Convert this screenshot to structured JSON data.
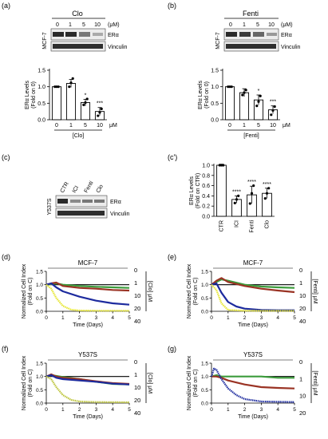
{
  "panels": {
    "a": {
      "tag": "(a)",
      "drug": "Clo",
      "unit": "(μM)",
      "doses": [
        "0",
        "1",
        "5",
        "10"
      ],
      "cell_line": "MCF-7",
      "blots": [
        "ERα",
        "Vinculin"
      ]
    },
    "b": {
      "tag": "(b)",
      "drug": "Fenti",
      "unit": "(μM)",
      "doses": [
        "0",
        "1",
        "5",
        "10"
      ],
      "cell_line": "MCF-7",
      "blots": [
        "ERα",
        "Vinculin"
      ]
    },
    "c": {
      "tag": "(c)",
      "lanes": [
        "CTR",
        "ICI",
        "Fenti",
        "Clo"
      ],
      "cell_line": "Y537S",
      "blots": [
        "ERα",
        "Vinculin"
      ]
    },
    "c2": {
      "tag": "(c')"
    },
    "d": {
      "tag": "(d)"
    },
    "e": {
      "tag": "(e)"
    },
    "f": {
      "tag": "(f)"
    },
    "g": {
      "tag": "(g)"
    }
  },
  "chart_data": [
    {
      "id": "a",
      "type": "bar",
      "categories": [
        "0",
        "1",
        "5",
        "10"
      ],
      "values": [
        1.0,
        1.1,
        0.52,
        0.25
      ],
      "errors": [
        0.02,
        0.12,
        0.1,
        0.12
      ],
      "points": [
        [
          1.0,
          1.0,
          1.0
        ],
        [
          1.0,
          1.12,
          1.25
        ],
        [
          0.45,
          0.52,
          0.63
        ],
        [
          0.12,
          0.22,
          0.33
        ]
      ],
      "significance": [
        "",
        "",
        "*",
        "***"
      ],
      "ylabel": "ERα Levels (Fold on 0)",
      "xlabel": "[Clo]",
      "xunit": "μM",
      "ylim": [
        0,
        1.5
      ],
      "yticks": [
        "0.0",
        "0.5",
        "1.0",
        "1.5"
      ]
    },
    {
      "id": "b",
      "type": "bar",
      "categories": [
        "0",
        "1",
        "5",
        "10"
      ],
      "values": [
        1.0,
        0.82,
        0.6,
        0.3
      ],
      "errors": [
        0.02,
        0.12,
        0.15,
        0.12
      ],
      "points": [
        [
          1.0,
          1.0,
          1.0
        ],
        [
          0.75,
          0.82,
          0.9
        ],
        [
          0.42,
          0.55,
          0.72
        ],
        [
          0.15,
          0.28,
          0.4
        ]
      ],
      "significance": [
        "",
        "",
        "*",
        "***"
      ],
      "ylabel": "ERα Levels (Fold on 0)",
      "xlabel": "[Fenti]",
      "xunit": "μM",
      "ylim": [
        0,
        1.5
      ],
      "yticks": [
        "0.0",
        "0.5",
        "1.0",
        "1.5"
      ]
    },
    {
      "id": "c2",
      "type": "bar",
      "categories": [
        "CTR",
        "ICI",
        "Fenti",
        "Clo"
      ],
      "values": [
        1.0,
        0.33,
        0.42,
        0.45
      ],
      "errors": [
        0.02,
        0.07,
        0.17,
        0.1
      ],
      "points": [
        [
          1.0,
          1.0,
          1.0
        ],
        [
          0.26,
          0.33,
          0.4
        ],
        [
          0.25,
          0.45,
          0.6
        ],
        [
          0.35,
          0.45,
          0.55
        ]
      ],
      "significance": [
        "",
        "****",
        "****",
        "****"
      ],
      "ylabel": "ERα Levels (Fold on CTR)",
      "xlabel": "",
      "ylim": [
        0,
        1.0
      ],
      "yticks": [
        "0.0",
        "0.2",
        "0.4",
        "0.6",
        "0.8",
        "1.0"
      ]
    },
    {
      "id": "d",
      "type": "line",
      "title": "MCF-7",
      "xlabel": "Time (Days)",
      "ylabel": "Normalized Cell Index (Fold on C)",
      "side_label": "[Clo] μM",
      "xlim": [
        0,
        5
      ],
      "ylim": [
        0,
        1.5
      ],
      "xticks": [
        "0",
        "1",
        "2",
        "3",
        "4",
        "5"
      ],
      "yticks": [
        "0.0",
        "0.5",
        "1.0",
        "1.5"
      ],
      "reference_line": 1.0,
      "series": [
        {
          "name": "0",
          "color": "#000000",
          "x": [
            0.0,
            0.3,
            0.6,
            1.0,
            2.0,
            3.0,
            4.0,
            5.0
          ],
          "y": [
            1.0,
            1.0,
            1.0,
            1.0,
            1.0,
            1.0,
            1.0,
            1.0
          ]
        },
        {
          "name": "1",
          "color": "#3c9c3c",
          "x": [
            0.0,
            0.3,
            0.6,
            1.0,
            2.0,
            3.0,
            4.0,
            5.0
          ],
          "y": [
            1.0,
            1.02,
            1.05,
            1.0,
            0.95,
            0.92,
            0.9,
            0.88
          ]
        },
        {
          "name": "10",
          "color": "#9a3324",
          "x": [
            0.0,
            0.3,
            0.6,
            1.0,
            2.0,
            3.0,
            4.0,
            5.0
          ],
          "y": [
            1.0,
            1.05,
            1.08,
            0.95,
            0.88,
            0.85,
            0.8,
            0.78
          ]
        },
        {
          "name": "20",
          "color": "#1d2b9e",
          "x": [
            0.0,
            0.3,
            0.6,
            1.0,
            2.0,
            3.0,
            4.0,
            5.0
          ],
          "y": [
            1.0,
            1.05,
            0.9,
            0.75,
            0.55,
            0.4,
            0.3,
            0.25
          ]
        },
        {
          "name": "40",
          "color": "#e6e62e",
          "x": [
            0.0,
            0.3,
            0.6,
            1.0,
            1.5,
            2.0,
            3.0,
            5.0
          ],
          "y": [
            1.0,
            0.85,
            0.5,
            0.2,
            0.06,
            0.03,
            0.02,
            0.02
          ]
        }
      ]
    },
    {
      "id": "e",
      "type": "line",
      "title": "MCF-7",
      "xlabel": "Time (Days)",
      "ylabel": "Normalized Cell Index (Fold on C)",
      "side_label": "[Fenti] μM",
      "xlim": [
        0,
        5
      ],
      "ylim": [
        0,
        1.5
      ],
      "xticks": [
        "0",
        "1",
        "2",
        "3",
        "4",
        "5"
      ],
      "yticks": [
        "0.0",
        "0.5",
        "1.0",
        "1.5"
      ],
      "reference_line": 1.0,
      "series": [
        {
          "name": "0",
          "color": "#000000",
          "x": [
            0.0,
            0.3,
            0.6,
            1.0,
            2.0,
            3.0,
            4.0,
            5.0
          ],
          "y": [
            1.0,
            1.0,
            1.0,
            1.0,
            1.0,
            1.0,
            1.0,
            1.0
          ]
        },
        {
          "name": "1",
          "color": "#3c9c3c",
          "x": [
            0.0,
            0.3,
            0.6,
            1.0,
            2.0,
            3.0,
            4.0,
            5.0
          ],
          "y": [
            1.0,
            1.1,
            1.2,
            1.15,
            1.0,
            0.93,
            0.9,
            0.88
          ]
        },
        {
          "name": "10",
          "color": "#9a3324",
          "x": [
            0.0,
            0.3,
            0.6,
            1.0,
            2.0,
            3.0,
            4.0,
            5.0
          ],
          "y": [
            1.0,
            1.15,
            1.25,
            1.1,
            0.95,
            0.85,
            0.78,
            0.72
          ]
        },
        {
          "name": "20",
          "color": "#1d2b9e",
          "x": [
            0.0,
            0.3,
            0.6,
            1.0,
            1.5,
            2.0,
            3.0,
            4.0,
            5.0
          ],
          "y": [
            1.0,
            1.05,
            0.7,
            0.35,
            0.18,
            0.1,
            0.05,
            0.04,
            0.04
          ]
        },
        {
          "name": "40",
          "color": "#e6e62e",
          "x": [
            0.0,
            0.3,
            0.6,
            1.0,
            2.0,
            5.0
          ],
          "y": [
            1.0,
            0.8,
            0.3,
            0.05,
            0.02,
            0.02
          ]
        }
      ]
    },
    {
      "id": "f",
      "type": "line",
      "title": "Y537S",
      "xlabel": "Time (Days)",
      "ylabel": "Normalized Cell Index (Fold on C)",
      "side_label": "[Clo] μM",
      "xlim": [
        0,
        5
      ],
      "ylim": [
        0,
        1.5
      ],
      "xticks": [
        "0",
        "1",
        "2",
        "3",
        "4",
        "5"
      ],
      "yticks": [
        "0.0",
        "0.5",
        "1.0",
        "1.5"
      ],
      "reference_line": 1.0,
      "series": [
        {
          "name": "0",
          "color": "#000000",
          "x": [
            0.0,
            0.3,
            0.6,
            1.0,
            2.0,
            3.0,
            4.0,
            5.0
          ],
          "y": [
            1.0,
            1.0,
            1.0,
            1.0,
            1.0,
            1.0,
            1.0,
            1.0
          ]
        },
        {
          "name": "1",
          "color": "#3c9c3c",
          "x": [
            0.0,
            0.3,
            0.6,
            1.0,
            2.0,
            3.0,
            4.0,
            5.0
          ],
          "y": [
            1.0,
            1.05,
            1.02,
            0.98,
            0.9,
            0.8,
            0.72,
            0.7
          ]
        },
        {
          "name": "10",
          "color": "#9a3324",
          "x": [
            0.0,
            0.3,
            0.6,
            1.0,
            2.0,
            3.0,
            4.0,
            5.0
          ],
          "y": [
            1.0,
            1.08,
            1.0,
            0.95,
            0.9,
            0.82,
            0.75,
            0.72
          ]
        },
        {
          "name": "20",
          "color": "#1d2b9e",
          "x": [
            0.0,
            0.3,
            0.6,
            1.0,
            2.0,
            3.0,
            4.0,
            5.0
          ],
          "y": [
            1.0,
            1.05,
            0.95,
            0.9,
            0.85,
            0.8,
            0.73,
            0.7
          ]
        },
        {
          "name": "40",
          "color": "#bcc43a",
          "x": [
            0.0,
            0.3,
            0.6,
            1.0,
            1.5,
            2.0,
            3.0,
            5.0
          ],
          "y": [
            1.0,
            0.9,
            0.6,
            0.3,
            0.12,
            0.06,
            0.04,
            0.03
          ]
        }
      ]
    },
    {
      "id": "g",
      "type": "line",
      "title": "Y537S",
      "xlabel": "Time (Days)",
      "ylabel": "Normalized Cell Index (Fold on C)",
      "side_label": "[Fenti] μM",
      "xlim": [
        0,
        5
      ],
      "ylim": [
        0,
        1.5
      ],
      "xticks": [
        "0",
        "1",
        "2",
        "3",
        "4",
        "5"
      ],
      "yticks": [
        "0.0",
        "0.5",
        "1.0",
        "1.5"
      ],
      "reference_line": 1.0,
      "series": [
        {
          "name": "0",
          "color": "#000000",
          "x": [
            0.0,
            0.3,
            0.6,
            1.0,
            2.0,
            3.0,
            4.0,
            5.0
          ],
          "y": [
            1.0,
            1.0,
            1.0,
            1.0,
            1.0,
            1.0,
            1.0,
            1.0
          ]
        },
        {
          "name": "1",
          "color": "#3c9c3c",
          "x": [
            0.0,
            0.3,
            0.6,
            1.0,
            2.0,
            3.0,
            4.0,
            5.0
          ],
          "y": [
            1.0,
            1.05,
            1.0,
            1.0,
            1.0,
            1.0,
            0.95,
            0.95
          ]
        },
        {
          "name": "10",
          "color": "#9a3324",
          "x": [
            0.0,
            0.3,
            0.6,
            1.0,
            2.0,
            3.0,
            4.0,
            5.0
          ],
          "y": [
            1.0,
            1.0,
            0.95,
            0.85,
            0.7,
            0.6,
            0.57,
            0.55
          ]
        },
        {
          "name": "20",
          "color": "#1d2b9e",
          "x": [
            0.0,
            0.15,
            0.3,
            0.6,
            1.0,
            1.5,
            2.0,
            3.0,
            5.0
          ],
          "y": [
            1.0,
            1.3,
            1.25,
            0.9,
            0.55,
            0.3,
            0.15,
            0.06,
            0.04
          ]
        }
      ]
    }
  ]
}
